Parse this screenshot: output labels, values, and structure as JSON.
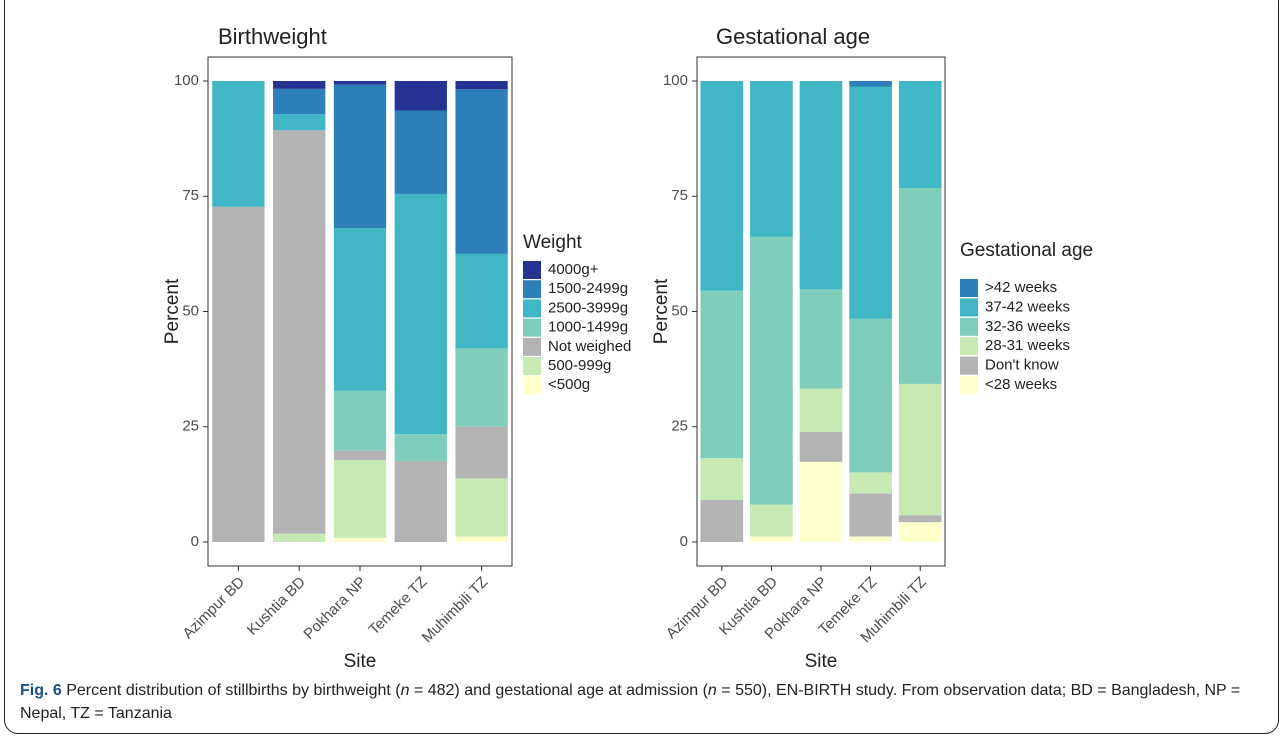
{
  "chart_data": [
    {
      "type": "bar",
      "stacked": true,
      "title": "Birthweight",
      "xlabel": "Site",
      "ylabel": "Percent",
      "legend_title": "Weight",
      "categories": [
        "Azimpur BD",
        "Kushtia BD",
        "Pokhara NP",
        "Temeke TZ",
        "Muhimbili TZ"
      ],
      "ylim": [
        0,
        100
      ],
      "yticks": [
        0,
        25,
        50,
        75,
        100
      ],
      "series": [
        {
          "name": "<500g",
          "color": "#ffffcc",
          "values": [
            0,
            0,
            0.9,
            0,
            1.2
          ]
        },
        {
          "name": "500-999g",
          "color": "#c7e9b4",
          "values": [
            0,
            1.8,
            16.9,
            0,
            12.6
          ]
        },
        {
          "name": "Not weighed",
          "color": "#b3b3b3",
          "values": [
            72.7,
            87.5,
            2.0,
            17.6,
            11.2
          ]
        },
        {
          "name": "1000-1499g",
          "color": "#7fcdbb",
          "values": [
            0,
            0,
            13.0,
            5.8,
            17.0
          ]
        },
        {
          "name": "2500-3999g",
          "color": "#41b6c4",
          "values": [
            27.3,
            3.5,
            35.3,
            52.1,
            20.5
          ]
        },
        {
          "name": "1500-2499g",
          "color": "#2c7fb8",
          "values": [
            0,
            5.5,
            31.1,
            18.1,
            35.7
          ]
        },
        {
          "name": "4000g+",
          "color": "#253494",
          "values": [
            0,
            1.7,
            0.8,
            6.4,
            1.8
          ]
        }
      ]
    },
    {
      "type": "bar",
      "stacked": true,
      "title": "Gestational age",
      "xlabel": "Site",
      "ylabel": "Percent",
      "legend_title": "Gestational age",
      "categories": [
        "Azimpur BD",
        "Kushtia BD",
        "Pokhara NP",
        "Temeke TZ",
        "Muhimbili TZ"
      ],
      "ylim": [
        0,
        100
      ],
      "yticks": [
        0,
        25,
        50,
        75,
        100
      ],
      "series": [
        {
          "name": "<28 weeks",
          "color": "#ffffcc",
          "values": [
            0,
            1.2,
            17.4,
            1.2,
            4.3
          ]
        },
        {
          "name": "Don't know",
          "color": "#b3b3b3",
          "values": [
            9.1,
            0,
            6.5,
            9.3,
            1.5
          ]
        },
        {
          "name": "28-31 weeks",
          "color": "#c7e9b4",
          "values": [
            9.1,
            6.9,
            9.4,
            4.6,
            28.5
          ]
        },
        {
          "name": "32-36 weeks",
          "color": "#7fcdbb",
          "values": [
            36.3,
            58.1,
            21.5,
            33.3,
            42.5
          ]
        },
        {
          "name": "37-42 weeks",
          "color": "#41b6c4",
          "values": [
            45.5,
            33.8,
            45.2,
            50.4,
            23.2
          ]
        },
        {
          "name": ">42 weeks",
          "color": "#2c7fb8",
          "values": [
            0,
            0,
            0,
            1.2,
            0
          ]
        }
      ]
    }
  ],
  "caption": {
    "label": "Fig. 6",
    "parts": [
      " Percent distribution of stillbirths by birthweight (",
      "n",
      " = 482) and gestational age at admission (",
      "n",
      " = 550), EN-BIRTH study. From observation data; BD = Bangladesh, NP = Nepal, TZ = Tanzania"
    ]
  }
}
